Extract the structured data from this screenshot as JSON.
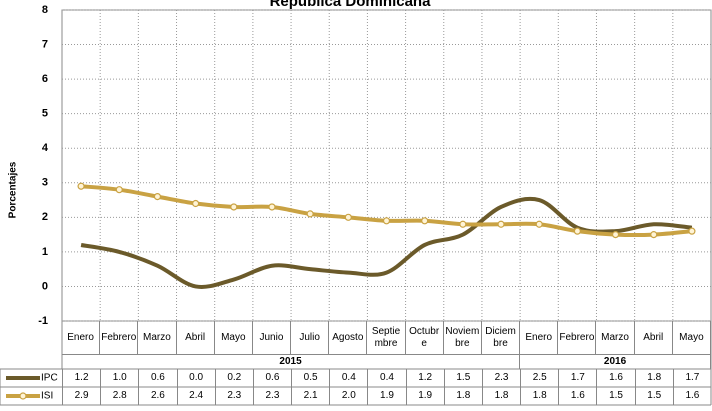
{
  "chart_data": {
    "type": "line",
    "title": "República Dominicana",
    "y_label": "Porcentajes",
    "categories": [
      "Enero",
      "Febrero",
      "Marzo",
      "Abril",
      "Mayo",
      "Junio",
      "Julio",
      "Agosto",
      "Septiembre",
      "Octubre",
      "Noviembre",
      "Diciembre",
      "Enero",
      "Febrero",
      "Marzo",
      "Abril",
      "Mayo"
    ],
    "years": [
      "2015",
      "2016"
    ],
    "series": [
      {
        "name": "IPC",
        "color": "#6b5a2a",
        "marker": false,
        "values": [
          1.2,
          1.0,
          0.6,
          0.0,
          0.2,
          0.6,
          0.5,
          0.4,
          0.4,
          1.2,
          1.5,
          2.3,
          2.5,
          1.7,
          1.6,
          1.8,
          1.7
        ],
        "value_labels": [
          "1.2",
          "1.0",
          "0.6",
          "0.0",
          "0.2",
          "0.6",
          "0.5",
          "0.4",
          "0.4",
          "1.2",
          "1.5",
          "2.3",
          "2.5",
          "1.7",
          "1.6",
          "1.8",
          "1.7"
        ]
      },
      {
        "name": "ISI",
        "color": "#c9a243",
        "marker": true,
        "values": [
          2.9,
          2.8,
          2.6,
          2.4,
          2.3,
          2.3,
          2.1,
          2.0,
          1.9,
          1.9,
          1.8,
          1.8,
          1.8,
          1.6,
          1.5,
          1.5,
          1.6
        ],
        "value_labels": [
          "2.9",
          "2.8",
          "2.6",
          "2.4",
          "2.3",
          "2.3",
          "2.1",
          "2.0",
          "1.9",
          "1.9",
          "1.8",
          "1.8",
          "1.8",
          "1.6",
          "1.5",
          "1.5",
          "1.6"
        ]
      }
    ],
    "ylim": [
      -1,
      8
    ],
    "yticks": [
      -1,
      0,
      1,
      2,
      3,
      4,
      5,
      6,
      7,
      8
    ],
    "grid": true
  }
}
